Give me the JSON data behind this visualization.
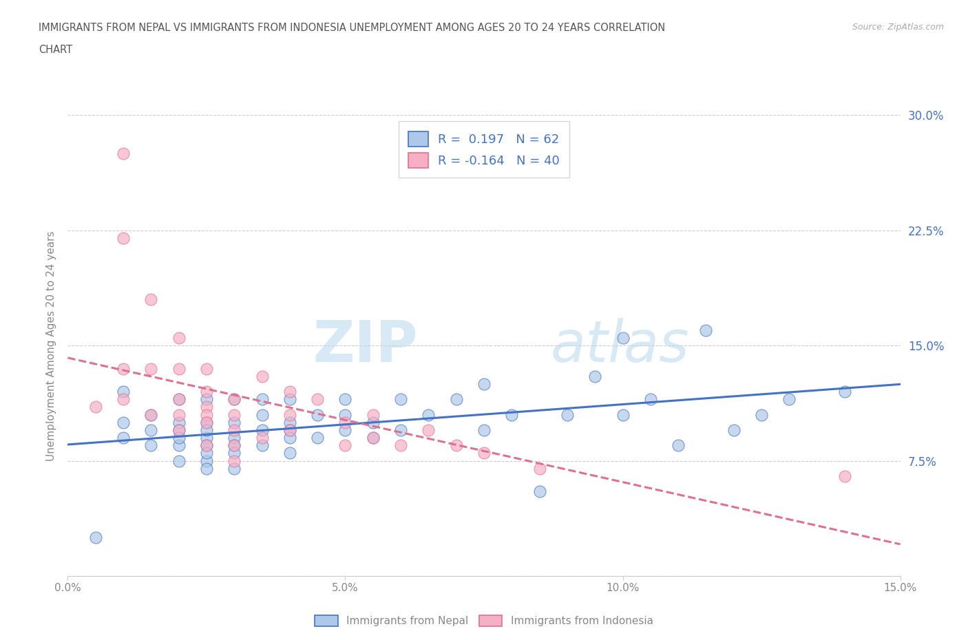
{
  "title_line1": "IMMIGRANTS FROM NEPAL VS IMMIGRANTS FROM INDONESIA UNEMPLOYMENT AMONG AGES 20 TO 24 YEARS CORRELATION",
  "title_line2": "CHART",
  "source": "Source: ZipAtlas.com",
  "ylabel": "Unemployment Among Ages 20 to 24 years",
  "xlim": [
    0.0,
    0.15
  ],
  "ylim": [
    0.0,
    0.3
  ],
  "xticks": [
    0.0,
    0.05,
    0.1,
    0.15
  ],
  "xticklabels": [
    "0.0%",
    "5.0%",
    "10.0%",
    "15.0%"
  ],
  "yticks": [
    0.0,
    0.075,
    0.15,
    0.225,
    0.3
  ],
  "yticklabels_right": [
    "",
    "7.5%",
    "15.0%",
    "22.5%",
    "30.0%"
  ],
  "nepal_R": "0.197",
  "nepal_N": "62",
  "indonesia_R": "-0.164",
  "indonesia_N": "40",
  "nepal_color": "#adc8e8",
  "indonesia_color": "#f5b0c5",
  "nepal_line_color": "#4472c4",
  "indonesia_line_color": "#e07090",
  "watermark_zip": "ZIP",
  "watermark_atlas": "atlas",
  "background_color": "#ffffff",
  "grid_color": "#cccccc",
  "tick_label_color": "#4472c4",
  "axis_label_color": "#888888",
  "title_color": "#555555",
  "nepal_x": [
    0.005,
    0.01,
    0.01,
    0.01,
    0.015,
    0.015,
    0.015,
    0.02,
    0.02,
    0.02,
    0.02,
    0.02,
    0.02,
    0.025,
    0.025,
    0.025,
    0.025,
    0.025,
    0.025,
    0.025,
    0.025,
    0.03,
    0.03,
    0.03,
    0.03,
    0.03,
    0.03,
    0.035,
    0.035,
    0.035,
    0.035,
    0.04,
    0.04,
    0.04,
    0.04,
    0.04,
    0.045,
    0.045,
    0.05,
    0.05,
    0.05,
    0.055,
    0.055,
    0.06,
    0.06,
    0.065,
    0.07,
    0.075,
    0.075,
    0.08,
    0.085,
    0.09,
    0.095,
    0.1,
    0.1,
    0.105,
    0.11,
    0.115,
    0.12,
    0.125,
    0.13,
    0.14
  ],
  "nepal_y": [
    0.025,
    0.09,
    0.1,
    0.12,
    0.085,
    0.105,
    0.095,
    0.115,
    0.1,
    0.085,
    0.095,
    0.09,
    0.075,
    0.115,
    0.1,
    0.09,
    0.085,
    0.095,
    0.075,
    0.08,
    0.07,
    0.1,
    0.115,
    0.09,
    0.085,
    0.08,
    0.07,
    0.105,
    0.095,
    0.115,
    0.085,
    0.1,
    0.115,
    0.095,
    0.09,
    0.08,
    0.105,
    0.09,
    0.115,
    0.105,
    0.095,
    0.1,
    0.09,
    0.115,
    0.095,
    0.105,
    0.115,
    0.125,
    0.095,
    0.105,
    0.055,
    0.105,
    0.13,
    0.155,
    0.105,
    0.115,
    0.085,
    0.16,
    0.095,
    0.105,
    0.115,
    0.12
  ],
  "indonesia_x": [
    0.005,
    0.01,
    0.01,
    0.01,
    0.01,
    0.015,
    0.015,
    0.015,
    0.02,
    0.02,
    0.02,
    0.02,
    0.02,
    0.025,
    0.025,
    0.025,
    0.025,
    0.025,
    0.025,
    0.03,
    0.03,
    0.03,
    0.03,
    0.03,
    0.035,
    0.035,
    0.04,
    0.04,
    0.04,
    0.045,
    0.05,
    0.05,
    0.055,
    0.055,
    0.06,
    0.065,
    0.07,
    0.075,
    0.085,
    0.14
  ],
  "indonesia_y": [
    0.11,
    0.275,
    0.22,
    0.135,
    0.115,
    0.18,
    0.135,
    0.105,
    0.155,
    0.135,
    0.115,
    0.105,
    0.095,
    0.12,
    0.11,
    0.105,
    0.135,
    0.1,
    0.085,
    0.115,
    0.105,
    0.095,
    0.085,
    0.075,
    0.13,
    0.09,
    0.12,
    0.105,
    0.095,
    0.115,
    0.1,
    0.085,
    0.09,
    0.105,
    0.085,
    0.095,
    0.085,
    0.08,
    0.07,
    0.065
  ]
}
